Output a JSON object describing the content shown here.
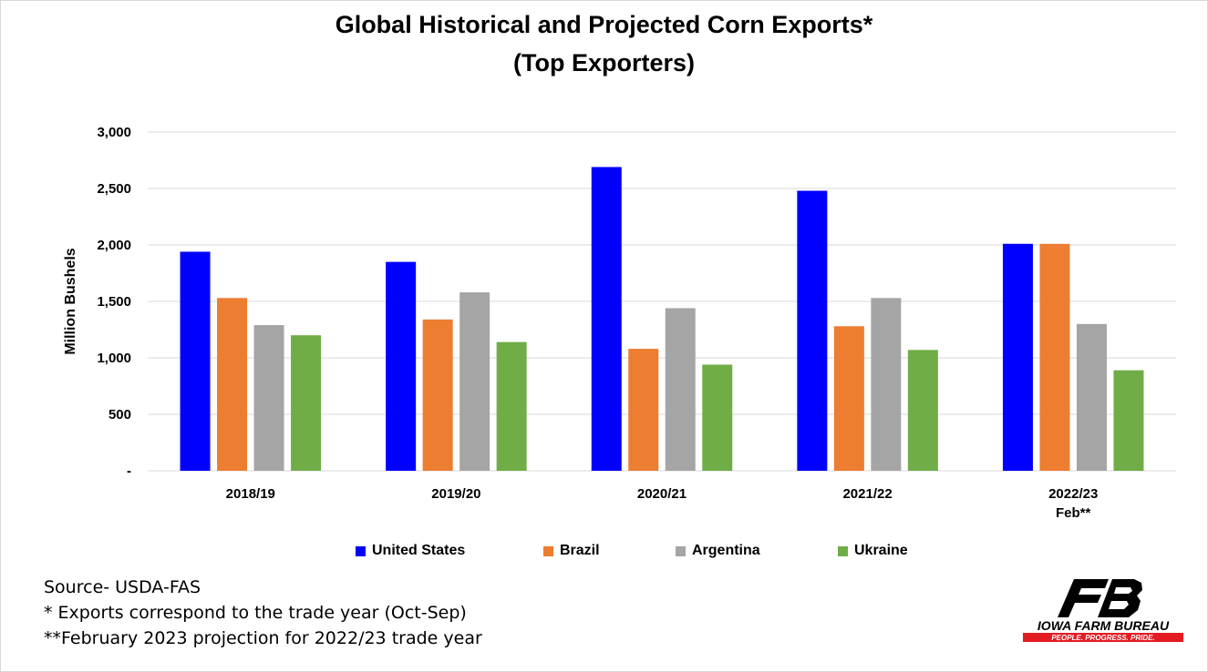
{
  "chart_data": {
    "type": "bar",
    "title": "Global Historical and Projected Corn Exports*",
    "subtitle": "(Top Exporters)",
    "ylabel": "Million Bushels",
    "xlabel": "",
    "ylim": [
      0,
      3000
    ],
    "yticks": [
      0,
      500,
      1000,
      1500,
      2000,
      2500,
      3000
    ],
    "ytick_labels": [
      "-",
      "500",
      "1,000",
      "1,500",
      "2,000",
      "2,500",
      "3,000"
    ],
    "grid": true,
    "legend_position": "bottom",
    "categories": [
      [
        "2018/19"
      ],
      [
        "2019/20"
      ],
      [
        "2020/21"
      ],
      [
        "2021/22"
      ],
      [
        "2022/23",
        "Feb**"
      ]
    ],
    "series": [
      {
        "name": "United States",
        "color": "#0000ff",
        "values": [
          1940,
          1850,
          2690,
          2480,
          2010
        ]
      },
      {
        "name": "Brazil",
        "color": "#ed7d31",
        "values": [
          1530,
          1340,
          1080,
          1280,
          2010
        ]
      },
      {
        "name": "Argentina",
        "color": "#a5a5a5",
        "values": [
          1290,
          1580,
          1440,
          1530,
          1300
        ]
      },
      {
        "name": "Ukraine",
        "color": "#70ad47",
        "values": [
          1200,
          1140,
          940,
          1070,
          890
        ]
      }
    ]
  },
  "notes": [
    "Source- USDA-FAS",
    "* Exports correspond to the trade year (Oct-Sep)",
    "**February 2023 projection for 2022/23 trade year"
  ],
  "logo": {
    "name": "IOWA FARM BUREAU",
    "tagline": "PEOPLE. PROGRESS. PRIDE.",
    "colors": {
      "mark": "#000000",
      "banner": "#e31b23"
    }
  }
}
